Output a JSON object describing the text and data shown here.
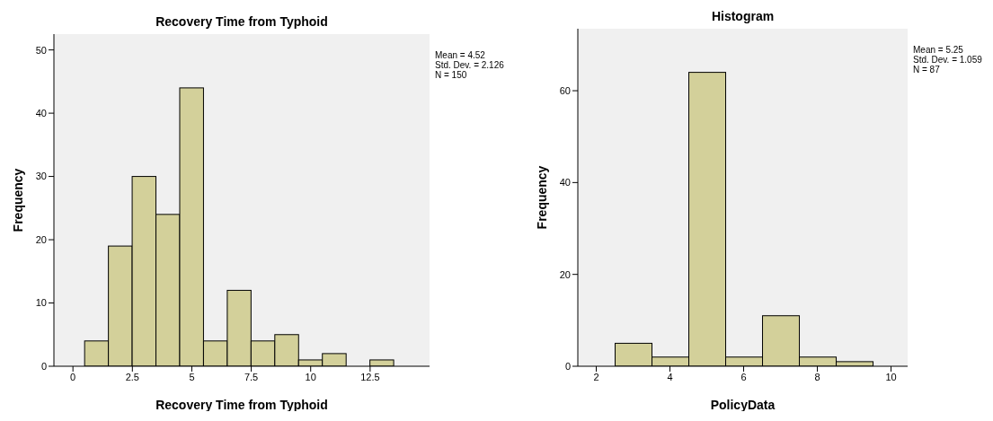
{
  "chart_data": [
    {
      "type": "histogram",
      "title": "Recovery Time from Typhoid",
      "xlabel": "Recovery Time from Typhoid",
      "ylabel": "Frequency",
      "bins": [
        0.5,
        1.5,
        2.5,
        3.5,
        4.5,
        5.5,
        6.5,
        7.5,
        8.5,
        9.5,
        10.5,
        11.5,
        12.5,
        13.5
      ],
      "values": [
        4,
        19,
        30,
        24,
        44,
        4,
        12,
        4,
        5,
        1,
        2,
        0,
        1
      ],
      "color": "#d3d09a",
      "xlim": [
        -0.8,
        15
      ],
      "xticks": [
        0,
        2.5,
        5,
        7.5,
        10,
        12.5
      ],
      "ylim": [
        0,
        52.5
      ],
      "yticks": [
        0,
        10,
        20,
        30,
        40,
        50
      ],
      "annotations": [
        "Mean = 4.52",
        "Std. Dev. = 2.126",
        "N = 150"
      ]
    },
    {
      "type": "histogram",
      "title": "Histogram",
      "xlabel": "PolicyData",
      "ylabel": "Frequency",
      "bins": [
        2.5,
        3.5,
        4.5,
        5.5,
        6.5,
        7.5,
        8.5,
        9.5
      ],
      "values": [
        5,
        2,
        64,
        2,
        11,
        2,
        1
      ],
      "color": "#d3d09a",
      "xlim": [
        1.5,
        10.45
      ],
      "xticks": [
        2,
        4,
        6,
        8,
        10
      ],
      "ylim": [
        0,
        73.5
      ],
      "yticks": [
        0,
        20,
        40,
        60
      ],
      "annotations": [
        "Mean = 5.25",
        "Std. Dev. = 1.059",
        "N = 87"
      ]
    }
  ]
}
